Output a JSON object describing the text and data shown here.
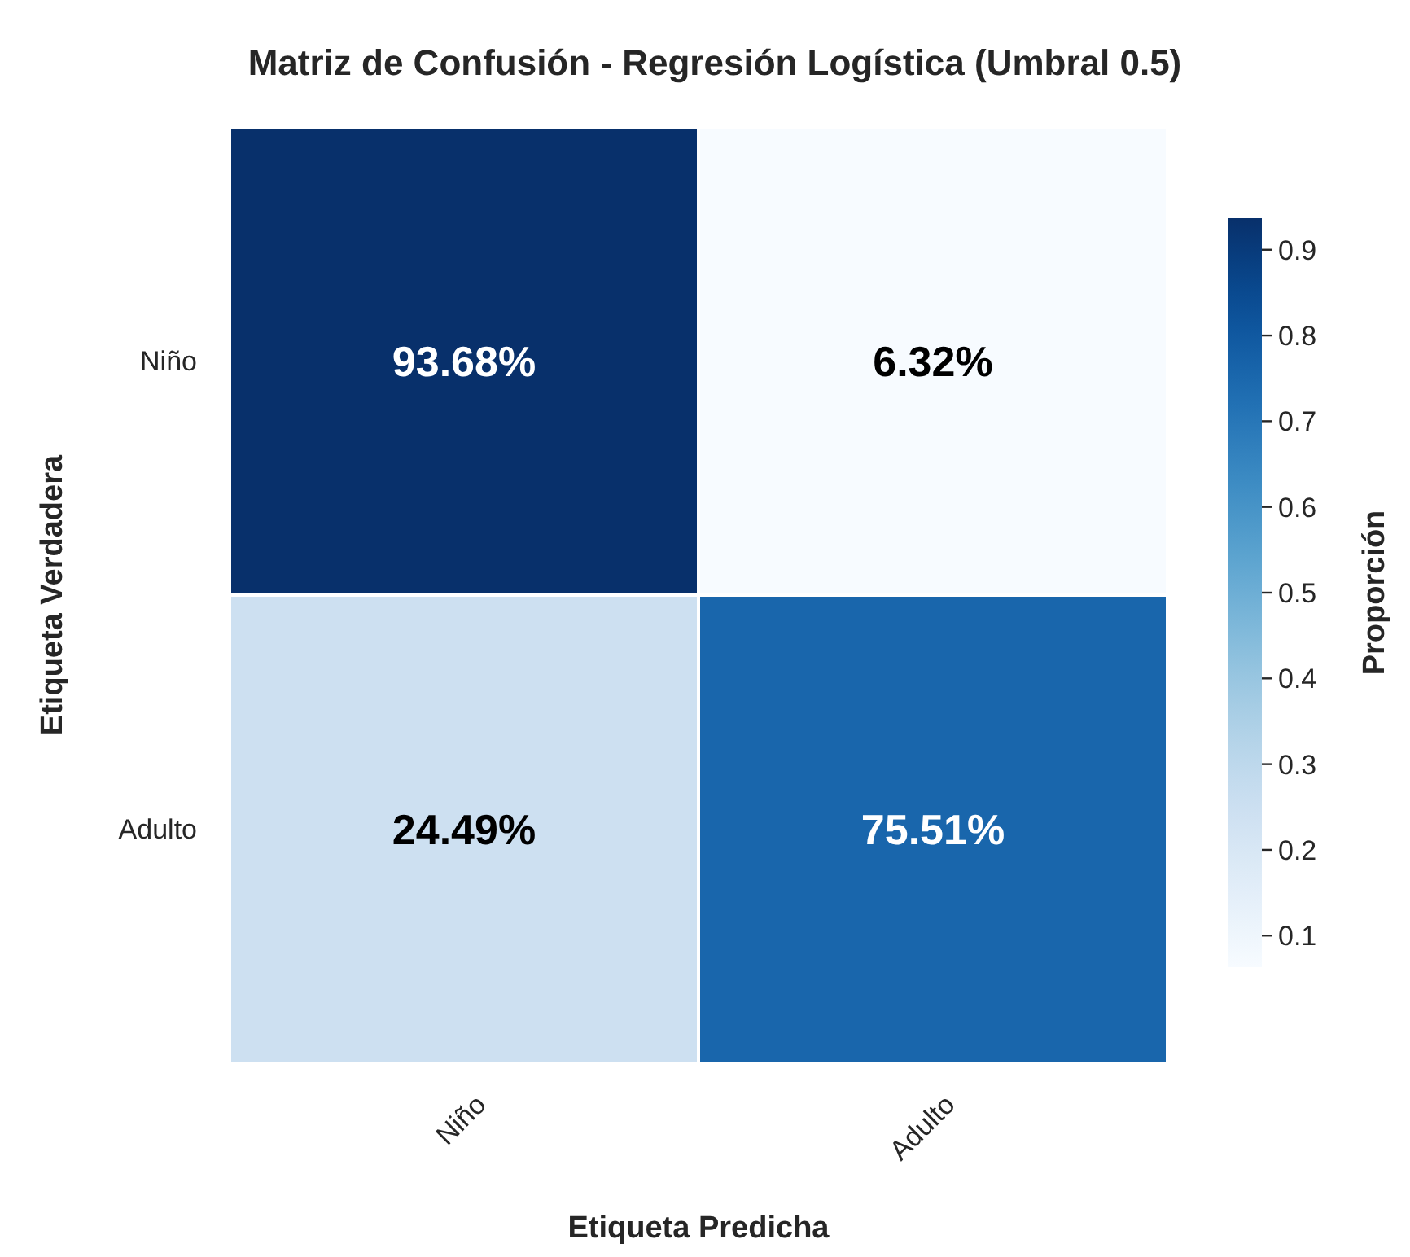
{
  "chart_data": {
    "type": "heatmap",
    "title": "Matriz de Confusión - Regresión Logística (Umbral 0.5)",
    "xlabel": "Etiqueta Predicha",
    "ylabel": "Etiqueta Verdadera",
    "clabel": "Proporción",
    "categories": [
      "Niño",
      "Adulto"
    ],
    "y_categories": [
      "Niño",
      "Adulto"
    ],
    "cells": [
      [
        0.9368,
        0.0632
      ],
      [
        0.2449,
        0.7551
      ]
    ],
    "cell_labels": [
      [
        "93.68%",
        "6.32%"
      ],
      [
        "24.49%",
        "75.51%"
      ]
    ],
    "clim": [
      0.0632,
      0.9368
    ],
    "cticks": [
      0.1,
      0.2,
      0.3,
      0.4,
      0.5,
      0.6,
      0.7,
      0.8,
      0.9
    ]
  }
}
